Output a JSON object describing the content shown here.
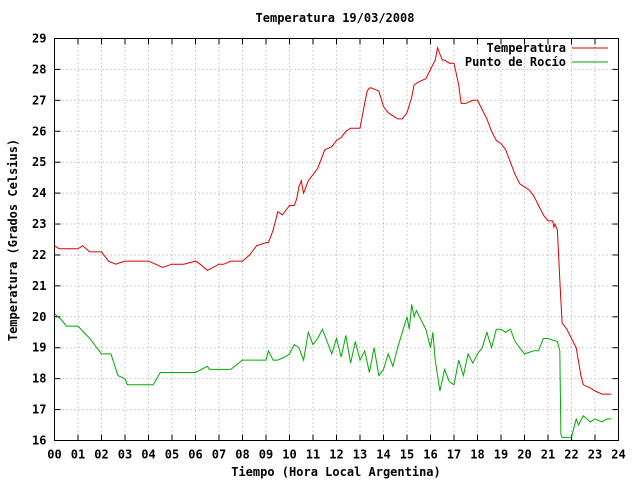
{
  "chart_data": {
    "type": "line",
    "title": "Temperatura 19/03/2008",
    "xlabel": "Tiempo (Hora Local Argentina)",
    "ylabel": "Temperatura (Grados Celsius)",
    "xlim": [
      0,
      24
    ],
    "ylim": [
      16,
      29
    ],
    "x_ticks": [
      "00",
      "01",
      "02",
      "03",
      "04",
      "05",
      "06",
      "07",
      "08",
      "09",
      "10",
      "11",
      "12",
      "13",
      "14",
      "15",
      "16",
      "17",
      "18",
      "19",
      "20",
      "21",
      "22",
      "23",
      "24"
    ],
    "y_ticks": [
      "16",
      "17",
      "18",
      "19",
      "20",
      "21",
      "22",
      "23",
      "24",
      "25",
      "26",
      "27",
      "28",
      "29"
    ],
    "grid": true,
    "legend_position": "top-right",
    "series": [
      {
        "name": "Temperatura",
        "color": "#dd0000",
        "x": [
          0.0,
          0.2,
          0.5,
          1.0,
          1.2,
          1.5,
          2.0,
          2.3,
          2.6,
          3.0,
          3.5,
          4.0,
          4.3,
          4.6,
          5.0,
          5.5,
          6.0,
          6.2,
          6.5,
          7.0,
          7.2,
          7.5,
          8.0,
          8.3,
          8.6,
          9.0,
          9.1,
          9.3,
          9.5,
          9.7,
          10.0,
          10.2,
          10.3,
          10.4,
          10.5,
          10.6,
          10.8,
          11.0,
          11.2,
          11.5,
          11.8,
          12.0,
          12.2,
          12.4,
          12.6,
          12.8,
          13.0,
          13.1,
          13.2,
          13.3,
          13.4,
          13.5,
          13.8,
          14.0,
          14.2,
          14.4,
          14.6,
          14.8,
          15.0,
          15.2,
          15.3,
          15.5,
          15.8,
          16.0,
          16.2,
          16.3,
          16.4,
          16.5,
          16.6,
          16.8,
          17.0,
          17.2,
          17.3,
          17.5,
          17.8,
          18.0,
          18.2,
          18.4,
          18.6,
          18.8,
          19.0,
          19.2,
          19.4,
          19.6,
          19.8,
          20.0,
          20.2,
          20.4,
          20.6,
          20.8,
          21.0,
          21.1,
          21.2,
          21.25,
          21.3,
          21.4,
          21.5,
          21.6,
          21.8,
          22.0,
          22.2,
          22.4,
          22.5,
          22.8,
          23.0,
          23.3,
          23.5,
          23.7
        ],
        "values": [
          22.3,
          22.2,
          22.2,
          22.2,
          22.3,
          22.1,
          22.1,
          21.8,
          21.7,
          21.8,
          21.8,
          21.8,
          21.7,
          21.6,
          21.7,
          21.7,
          21.8,
          21.7,
          21.5,
          21.7,
          21.7,
          21.8,
          21.8,
          22.0,
          22.3,
          22.4,
          22.4,
          22.8,
          23.4,
          23.3,
          23.6,
          23.6,
          23.8,
          24.2,
          24.4,
          24.0,
          24.4,
          24.6,
          24.8,
          25.4,
          25.5,
          25.7,
          25.8,
          26.0,
          26.1,
          26.1,
          26.1,
          26.5,
          26.9,
          27.3,
          27.4,
          27.4,
          27.3,
          26.8,
          26.6,
          26.5,
          26.4,
          26.4,
          26.6,
          27.1,
          27.5,
          27.6,
          27.7,
          28.0,
          28.3,
          28.7,
          28.5,
          28.3,
          28.3,
          28.2,
          28.2,
          27.5,
          26.9,
          26.9,
          27.0,
          27.0,
          26.7,
          26.4,
          26.0,
          25.7,
          25.6,
          25.4,
          25.0,
          24.6,
          24.3,
          24.2,
          24.1,
          23.9,
          23.6,
          23.3,
          23.1,
          23.1,
          23.1,
          22.9,
          23.0,
          22.8,
          21.2,
          19.8,
          19.6,
          19.3,
          19.0,
          18.1,
          17.8,
          17.7,
          17.6,
          17.5,
          17.5,
          17.5
        ]
      },
      {
        "name": "Punto de Rocío",
        "color": "#00aa00",
        "x": [
          0.0,
          0.3,
          0.5,
          1.0,
          1.5,
          2.0,
          2.4,
          2.7,
          3.0,
          3.1,
          3.5,
          4.0,
          4.2,
          4.5,
          5.0,
          5.5,
          6.0,
          6.5,
          6.6,
          7.0,
          7.5,
          8.0,
          8.5,
          9.0,
          9.1,
          9.3,
          9.5,
          9.8,
          10.0,
          10.2,
          10.4,
          10.6,
          10.8,
          11.0,
          11.2,
          11.4,
          11.6,
          11.8,
          12.0,
          12.2,
          12.4,
          12.6,
          12.8,
          13.0,
          13.2,
          13.4,
          13.6,
          13.8,
          14.0,
          14.2,
          14.4,
          14.6,
          14.8,
          15.0,
          15.1,
          15.2,
          15.3,
          15.4,
          15.6,
          15.8,
          16.0,
          16.1,
          16.2,
          16.4,
          16.6,
          16.8,
          17.0,
          17.2,
          17.4,
          17.6,
          17.8,
          18.0,
          18.2,
          18.4,
          18.6,
          18.8,
          19.0,
          19.2,
          19.4,
          19.6,
          20.0,
          20.4,
          20.6,
          20.8,
          21.0,
          21.4,
          21.5,
          21.55,
          21.6,
          22.0,
          22.2,
          22.3,
          22.5,
          22.8,
          23.0,
          23.3,
          23.5,
          23.7
        ],
        "values": [
          20.1,
          19.9,
          19.7,
          19.7,
          19.3,
          18.8,
          18.8,
          18.1,
          18.0,
          17.8,
          17.8,
          17.8,
          17.8,
          18.2,
          18.2,
          18.2,
          18.2,
          18.4,
          18.3,
          18.3,
          18.3,
          18.6,
          18.6,
          18.6,
          18.9,
          18.6,
          18.6,
          18.7,
          18.8,
          19.1,
          19.0,
          18.6,
          19.5,
          19.1,
          19.3,
          19.6,
          19.2,
          18.8,
          19.3,
          18.7,
          19.4,
          18.5,
          19.2,
          18.6,
          18.9,
          18.2,
          19.0,
          18.1,
          18.3,
          18.8,
          18.4,
          19.0,
          19.5,
          20.0,
          19.6,
          20.4,
          20.0,
          20.2,
          19.9,
          19.6,
          19.0,
          19.5,
          18.6,
          17.6,
          18.3,
          17.9,
          17.8,
          18.6,
          18.1,
          18.8,
          18.5,
          18.8,
          19.0,
          19.5,
          19.0,
          19.6,
          19.6,
          19.5,
          19.6,
          19.2,
          18.8,
          18.9,
          18.9,
          19.3,
          19.3,
          19.2,
          18.9,
          16.2,
          16.1,
          16.1,
          16.7,
          16.5,
          16.8,
          16.6,
          16.7,
          16.6,
          16.7,
          16.7
        ]
      }
    ]
  }
}
